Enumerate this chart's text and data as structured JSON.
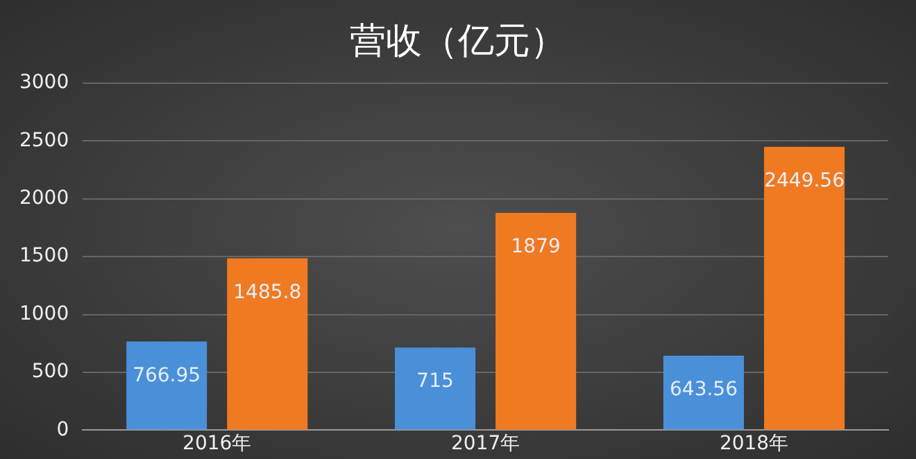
{
  "chart_data": {
    "type": "bar",
    "title": "营收（亿元）",
    "categories": [
      "2016年",
      "2017年",
      "2018年"
    ],
    "series": [
      {
        "color": "#4a90d9",
        "values": [
          766.95,
          715,
          643.56
        ]
      },
      {
        "color": "#f07a22",
        "values": [
          1485.8,
          1879,
          2449.56
        ]
      }
    ],
    "ylim": [
      0,
      3000
    ],
    "yticks": [
      0,
      500,
      1000,
      1500,
      2000,
      2500,
      3000
    ],
    "grid": "y",
    "data_labels": true,
    "legend": false
  }
}
